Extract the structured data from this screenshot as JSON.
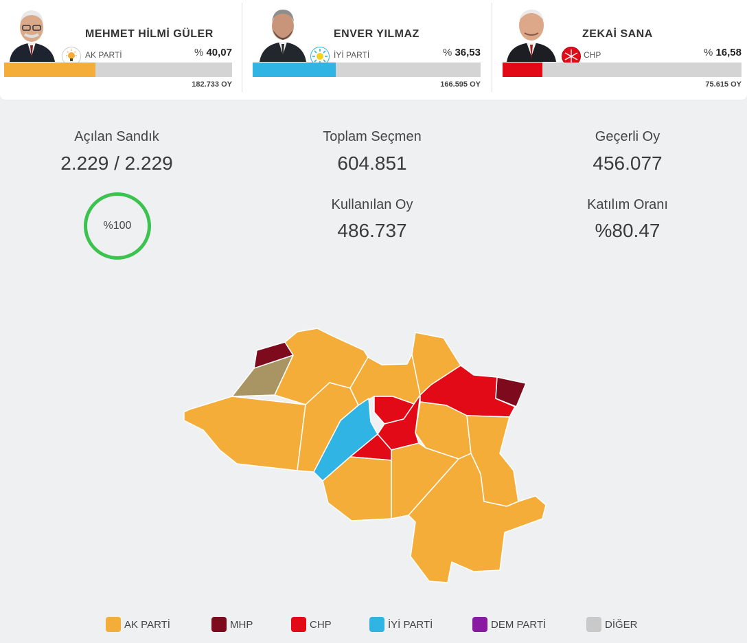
{
  "candidates": [
    {
      "name": "MEHMET HİLMİ GÜLER",
      "party": "AK PARTİ",
      "pct_prefix": "% ",
      "pct": "40,07",
      "pct_value": 40.07,
      "votes": "182.733 OY",
      "color": "#f4ad39",
      "logo": "bulb-icon"
    },
    {
      "name": "ENVER YILMAZ",
      "party": "İYİ PARTİ",
      "pct_prefix": "% ",
      "pct": "36,53",
      "pct_value": 36.53,
      "votes": "166.595 OY",
      "color": "#2fb4e4",
      "logo": "sun-icon"
    },
    {
      "name": "ZEKAİ SANA",
      "party": "CHP",
      "pct_prefix": "% ",
      "pct": "16,58",
      "pct_value": 16.58,
      "votes": "75.615 OY",
      "color": "#e30a17",
      "logo": "six-arrows-icon"
    }
  ],
  "stats": {
    "opened_label": "Açılan Sandık",
    "opened_value": "2.229 / 2.229",
    "opened_pct": "%100",
    "voters_label": "Toplam Seçmen",
    "voters_value": "604.851",
    "valid_label": "Geçerli Oy",
    "valid_value": "456.077",
    "used_label": "Kullanılan Oy",
    "used_value": "486.737",
    "turnout_label": "Katılım Oranı",
    "turnout_value": "%80.47"
  },
  "legend": [
    {
      "label": "AK PARTİ",
      "color": "#f4ad39"
    },
    {
      "label": "MHP",
      "color": "#7e0a1e"
    },
    {
      "label": "CHP",
      "color": "#e30a17"
    },
    {
      "label": "İYİ PARTİ",
      "color": "#2fb4e4"
    },
    {
      "label": "DEM PARTİ",
      "color": "#8b1aa3"
    },
    {
      "label": "DİĞER",
      "color": "#c9c9c9"
    }
  ],
  "map_colors": {
    "akp": "#f4ad39",
    "chp": "#e30a17",
    "iyi": "#2fb4e4",
    "mhp": "#7e0a1e",
    "other": "#a89563"
  }
}
